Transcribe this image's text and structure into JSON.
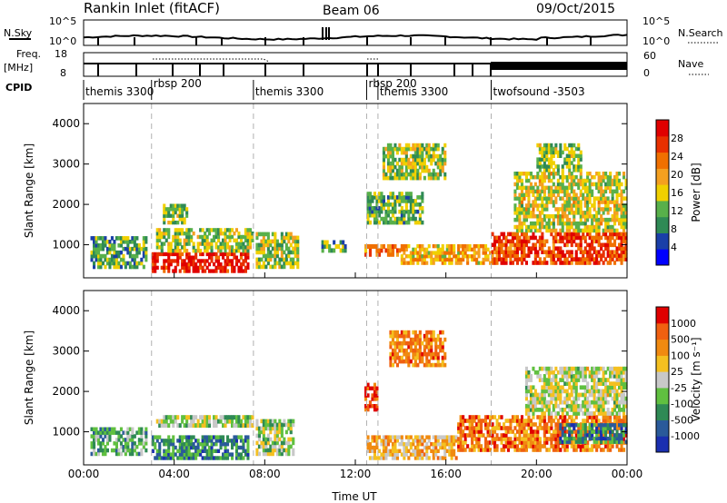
{
  "header": {
    "station": "Rankin Inlet (fitACF)",
    "beam": "Beam 06",
    "date": "09/Oct/2015"
  },
  "top_strips": {
    "nsky_label": "N.Sky",
    "nsky_ticks": [
      "10^5",
      "10^0"
    ],
    "nsearch_label": "N.Search",
    "nsearch_ticks": [
      "10^5",
      "10^0"
    ],
    "freq_label": "Freq.",
    "freq_unit": "[MHz]",
    "freq_ticks": [
      "18",
      "8"
    ],
    "nave_label": "Nave",
    "nave_ticks": [
      "60",
      "0"
    ],
    "cpid_label": "CPID",
    "cpid_segments": [
      {
        "label": "themis 3300",
        "start": 0.0
      },
      {
        "label": "rbsp 200",
        "start": 3.0
      },
      {
        "label": "themis 3300",
        "start": 7.5
      },
      {
        "label": "rbsp 200",
        "start": 12.5
      },
      {
        "label": "themis 3300",
        "start": 13.0
      },
      {
        "label": "twofsound -3503",
        "start": 18.0
      }
    ]
  },
  "colors": {
    "power": [
      "#0000ff",
      "#1a3fa8",
      "#2f8a55",
      "#58b04a",
      "#f0d000",
      "#f4a020",
      "#f07000",
      "#e83000",
      "#e00000"
    ],
    "velocity": [
      "#1a2fb0",
      "#2a5a9a",
      "#2f8a55",
      "#60c040",
      "#c8c8c8",
      "#f4c020",
      "#f08a10",
      "#f06010",
      "#e00000"
    ],
    "dash": "#b0b0b0"
  },
  "chart_data": [
    {
      "type": "heatmap",
      "title": "",
      "xlabel": "Time UT",
      "ylabel": "Slant Range [km]",
      "x_ticks": [
        "00:00",
        "04:00",
        "08:00",
        "12:00",
        "16:00",
        "20:00",
        "00:00"
      ],
      "xlim": [
        0,
        24
      ],
      "ylim": [
        180,
        4500
      ],
      "y_ticks": [
        1000,
        2000,
        3000,
        4000
      ],
      "colorbar_label": "Power [dB]",
      "colorbar_ticks": [
        "28",
        "24",
        "20",
        "16",
        "12",
        "8",
        "4"
      ],
      "dashed_time_lines": [
        3.0,
        7.5,
        12.5,
        13.0,
        18.0
      ],
      "regions": [
        {
          "t0": 0.3,
          "t1": 2.8,
          "r0": 400,
          "r1": 1200,
          "level": 0.35
        },
        {
          "t0": 3.0,
          "t1": 7.3,
          "r0": 300,
          "r1": 800,
          "level": 0.92
        },
        {
          "t0": 3.2,
          "t1": 7.5,
          "r0": 800,
          "r1": 1400,
          "level": 0.45
        },
        {
          "t0": 3.5,
          "t1": 4.6,
          "r0": 1500,
          "r1": 2000,
          "level": 0.4
        },
        {
          "t0": 7.6,
          "t1": 9.5,
          "r0": 400,
          "r1": 1300,
          "level": 0.45
        },
        {
          "t0": 10.5,
          "t1": 11.6,
          "r0": 800,
          "r1": 1100,
          "level": 0.35
        },
        {
          "t0": 12.4,
          "t1": 14.0,
          "r0": 700,
          "r1": 1000,
          "level": 0.7
        },
        {
          "t0": 12.5,
          "t1": 15.0,
          "r0": 1500,
          "r1": 2300,
          "level": 0.35
        },
        {
          "t0": 13.2,
          "t1": 16.0,
          "r0": 2600,
          "r1": 3500,
          "level": 0.45
        },
        {
          "t0": 14.0,
          "t1": 18.0,
          "r0": 500,
          "r1": 1000,
          "level": 0.6
        },
        {
          "t0": 18.0,
          "t1": 24.0,
          "r0": 500,
          "r1": 1300,
          "level": 0.82
        },
        {
          "t0": 19.0,
          "t1": 24.0,
          "r0": 1300,
          "r1": 2800,
          "level": 0.5
        },
        {
          "t0": 20.0,
          "t1": 22.0,
          "r0": 2800,
          "r1": 3500,
          "level": 0.4
        }
      ]
    },
    {
      "type": "heatmap",
      "title": "",
      "xlabel": "Time UT",
      "ylabel": "Slant Range [km]",
      "x_ticks": [
        "00:00",
        "04:00",
        "08:00",
        "12:00",
        "16:00",
        "20:00",
        "00:00"
      ],
      "xlim": [
        0,
        24
      ],
      "ylim": [
        180,
        4500
      ],
      "y_ticks": [
        1000,
        2000,
        3000,
        4000
      ],
      "colorbar_label": "Velocity [m s⁻¹]",
      "colorbar_ticks": [
        "1000",
        "500",
        "100",
        "25",
        "-25",
        "-100",
        "-500",
        "-1000"
      ],
      "dashed_time_lines": [
        3.0,
        7.5,
        12.5,
        13.0,
        18.0
      ],
      "regions": [
        {
          "t0": 0.3,
          "t1": 2.8,
          "r0": 400,
          "r1": 1100,
          "level": 0.35
        },
        {
          "t0": 3.0,
          "t1": 7.3,
          "r0": 300,
          "r1": 900,
          "level": 0.25
        },
        {
          "t0": 3.2,
          "t1": 7.5,
          "r0": 1100,
          "r1": 1400,
          "level": 0.45
        },
        {
          "t0": 7.6,
          "t1": 9.3,
          "r0": 400,
          "r1": 1300,
          "level": 0.45
        },
        {
          "t0": 12.4,
          "t1": 13.0,
          "r0": 1500,
          "r1": 2200,
          "level": 0.9
        },
        {
          "t0": 12.5,
          "t1": 16.5,
          "r0": 300,
          "r1": 900,
          "level": 0.62
        },
        {
          "t0": 13.5,
          "t1": 16.0,
          "r0": 2600,
          "r1": 3500,
          "level": 0.75
        },
        {
          "t0": 16.5,
          "t1": 24.0,
          "r0": 500,
          "r1": 1400,
          "level": 0.78
        },
        {
          "t0": 19.5,
          "t1": 24.0,
          "r0": 1400,
          "r1": 2600,
          "level": 0.5
        },
        {
          "t0": 21.0,
          "t1": 24.0,
          "r0": 700,
          "r1": 1200,
          "level": 0.25
        }
      ]
    }
  ]
}
